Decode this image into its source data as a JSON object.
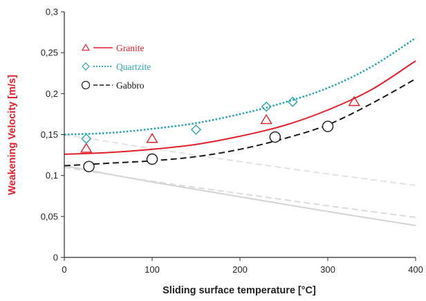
{
  "chart_data": {
    "type": "scatter",
    "title": "",
    "xlabel": "Sliding surface temperature [°C]",
    "ylabel": "Weakening Velocity [m/s]",
    "xlim": [
      0,
      400
    ],
    "ylim": [
      0,
      0.3
    ],
    "x_ticks": [
      0,
      100,
      200,
      300,
      400
    ],
    "x_tick_labels": [
      "0",
      "100",
      "200",
      "300",
      "400"
    ],
    "y_ticks": [
      0,
      0.05,
      0.1,
      0.15,
      0.2,
      0.25,
      0.3
    ],
    "y_tick_labels": [
      "0",
      "0,05",
      "0,1",
      "0,15",
      "0,2",
      "0,25",
      "0,3"
    ],
    "grid": false,
    "legend_position": "top-left",
    "series": [
      {
        "name": "Granite",
        "marker": "triangle",
        "color": "#e0202a",
        "line_style": "solid",
        "points": [
          [
            25,
            0.133
          ],
          [
            100,
            0.145
          ],
          [
            230,
            0.168
          ],
          [
            330,
            0.19
          ]
        ],
        "fit": [
          [
            0,
            0.126
          ],
          [
            50,
            0.128
          ],
          [
            100,
            0.132
          ],
          [
            150,
            0.138
          ],
          [
            200,
            0.148
          ],
          [
            250,
            0.161
          ],
          [
            300,
            0.18
          ],
          [
            350,
            0.205
          ],
          [
            400,
            0.24
          ]
        ]
      },
      {
        "name": "Quartzite",
        "marker": "diamond",
        "color": "#2aa3b5",
        "line_style": "dotted",
        "points": [
          [
            25,
            0.145
          ],
          [
            150,
            0.156
          ],
          [
            230,
            0.184
          ],
          [
            260,
            0.19
          ]
        ],
        "fit": [
          [
            0,
            0.15
          ],
          [
            50,
            0.152
          ],
          [
            100,
            0.157
          ],
          [
            150,
            0.164
          ],
          [
            200,
            0.175
          ],
          [
            250,
            0.189
          ],
          [
            300,
            0.207
          ],
          [
            350,
            0.233
          ],
          [
            400,
            0.268
          ]
        ]
      },
      {
        "name": "Gabbro",
        "marker": "circle",
        "color": "#1a1a1a",
        "line_style": "dashed",
        "points": [
          [
            28,
            0.111
          ],
          [
            100,
            0.12
          ],
          [
            240,
            0.147
          ],
          [
            300,
            0.16
          ]
        ],
        "fit": [
          [
            0,
            0.112
          ],
          [
            50,
            0.115
          ],
          [
            100,
            0.118
          ],
          [
            150,
            0.123
          ],
          [
            200,
            0.132
          ],
          [
            250,
            0.145
          ],
          [
            300,
            0.162
          ],
          [
            350,
            0.188
          ],
          [
            400,
            0.218
          ]
        ]
      }
    ],
    "background_lines": [
      {
        "style": "dashed",
        "color": "#e2e2e2",
        "points": [
          [
            0,
            0.15
          ],
          [
            100,
            0.133
          ],
          [
            200,
            0.117
          ],
          [
            300,
            0.102
          ],
          [
            400,
            0.088
          ]
        ]
      },
      {
        "style": "solid",
        "color": "#d3d3d3",
        "points": [
          [
            0,
            0.112
          ],
          [
            100,
            0.092
          ],
          [
            200,
            0.074
          ],
          [
            300,
            0.056
          ],
          [
            400,
            0.039
          ]
        ]
      },
      {
        "style": "dashed",
        "color": "#dadada",
        "points": [
          [
            0,
            0.11
          ],
          [
            100,
            0.093
          ],
          [
            200,
            0.078
          ],
          [
            300,
            0.063
          ],
          [
            400,
            0.049
          ]
        ]
      }
    ],
    "colors": {
      "axis": "#2a2a2a",
      "ylabel": "#e0202a",
      "xlabel": "#222222"
    }
  }
}
